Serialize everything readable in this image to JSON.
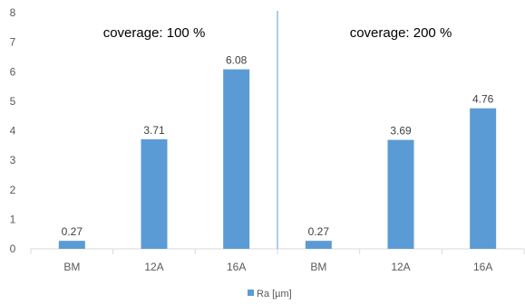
{
  "chart_data": {
    "type": "bar",
    "categories": [
      "BM",
      "12A",
      "16A",
      "BM",
      "12A",
      "16A"
    ],
    "series": [
      {
        "name": "Ra [µm]",
        "values": [
          0.27,
          3.71,
          6.08,
          0.27,
          3.69,
          4.76
        ],
        "data_labels": [
          "0.27",
          "3.71",
          "6.08",
          "0.27",
          "3.69",
          "4.76"
        ],
        "color": "#5B9BD5"
      }
    ],
    "title": "",
    "xlabel": "",
    "ylabel": "",
    "ylim": [
      0,
      8
    ],
    "yticks": [
      "0",
      "1",
      "2",
      "3",
      "4",
      "5",
      "6",
      "7",
      "8"
    ],
    "grid": false,
    "legend_position": "bottom",
    "annotations": [
      "coverage: 100 %",
      "coverage: 200 %"
    ],
    "group_divider_after_category": 3,
    "colors": {
      "bar": "#5B9BD5",
      "divider": "#5B9BD5",
      "axis": "#D9D9D9"
    }
  }
}
